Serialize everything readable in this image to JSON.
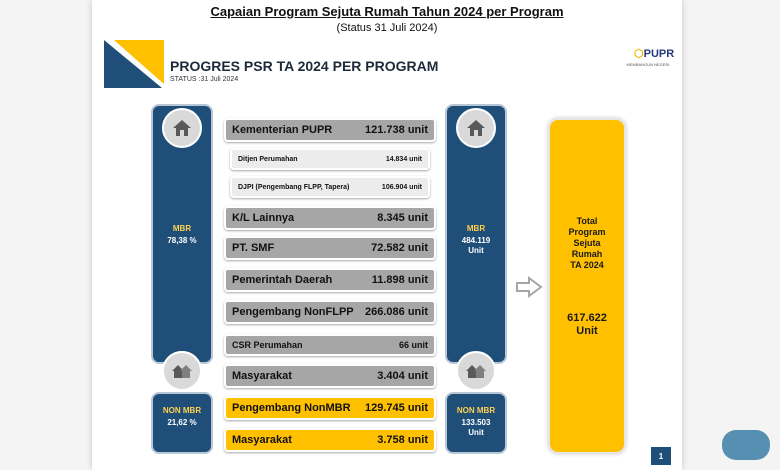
{
  "caption": {
    "title": "Capaian Program Sejuta Rumah Tahun 2024 per Program",
    "subtitle": "(Status 31 Juli 2024)"
  },
  "header": {
    "title": "PROGRES PSR TA 2024 PER PROGRAM",
    "status": "STATUS :31 Juli 2024",
    "logo": "PUPR",
    "logo_sub": "MEMBANGUN NEGERI"
  },
  "colors": {
    "navy": "#1f4e79",
    "gold": "#ffc000",
    "grey": "#a6a6a6"
  },
  "left": {
    "mbr_label": "MBR",
    "mbr_percent": "78,38 %",
    "nonmbr_label": "NON MBR",
    "nonmbr_percent": "21,62 %"
  },
  "rows": {
    "kementerian": {
      "label": "Kementerian PUPR",
      "value": "121.738 unit"
    },
    "ditjen": {
      "label": "Ditjen Perumahan",
      "value": "14.834 unit"
    },
    "djpi": {
      "label": "DJPI (Pengembang FLPP, Tapera)",
      "value": "106.904 unit"
    },
    "kl": {
      "label": "K/L Lainnya",
      "value": "8.345 unit"
    },
    "smf": {
      "label": "PT. SMF",
      "value": "72.582 unit"
    },
    "pemda": {
      "label": "Pemerintah Daerah",
      "value": "11.898 unit"
    },
    "nonflpp": {
      "label": "Pengembang NonFLPP",
      "value": "266.086 unit"
    },
    "csr": {
      "label": "CSR Perumahan",
      "value": "66 unit"
    },
    "masyarakat1": {
      "label": "Masyarakat",
      "value": "3.404 unit"
    },
    "nonmbr_dev": {
      "label": "Pengembang NonMBR",
      "value": "129.745 unit"
    },
    "masyarakat2": {
      "label": "Masyarakat",
      "value": "3.758 unit"
    }
  },
  "right": {
    "mbr_label": "MBR",
    "mbr_value": "484.119",
    "mbr_unit": "Unit",
    "nonmbr_label": "NON MBR",
    "nonmbr_value": "133.503",
    "nonmbr_unit": "Unit"
  },
  "total": {
    "line1": "Total",
    "line2": "Program",
    "line3": "Sejuta",
    "line4": "Rumah",
    "line5": "TA 2024",
    "value": "617.622",
    "unit": "Unit"
  },
  "page_number": "1"
}
